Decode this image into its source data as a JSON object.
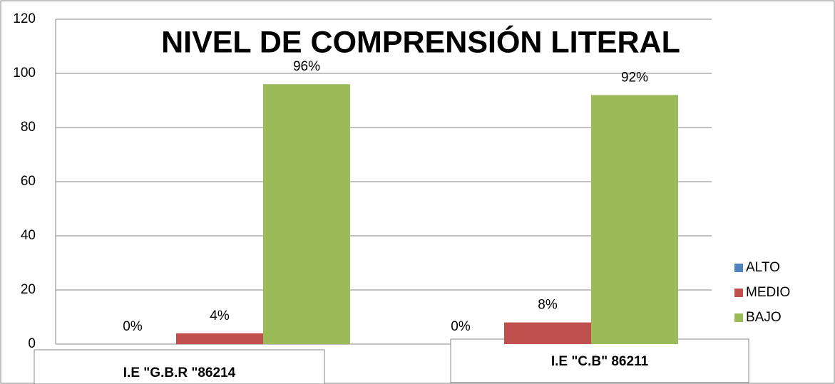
{
  "chart_data": {
    "type": "bar",
    "title": "NIVEL DE COMPRENSIÓN LITERAL",
    "categories": [
      "I.E \"G.B.R \"86214",
      "I.E \"C.B\" 86211"
    ],
    "series": [
      {
        "name": "ALTO",
        "color": "#4f81bd",
        "values": [
          0,
          0
        ],
        "value_labels": [
          "0%",
          "0%"
        ]
      },
      {
        "name": "MEDIO",
        "color": "#c0504d",
        "values": [
          4,
          8
        ],
        "value_labels": [
          "4%",
          "8%"
        ]
      },
      {
        "name": "BAJO",
        "color": "#9bbb59",
        "values": [
          96,
          92
        ],
        "value_labels": [
          "96%",
          "92%"
        ]
      }
    ],
    "ylim": [
      0,
      120
    ],
    "yticks": [
      0,
      20,
      40,
      60,
      80,
      100,
      120
    ],
    "grid": true,
    "legend": "right"
  }
}
